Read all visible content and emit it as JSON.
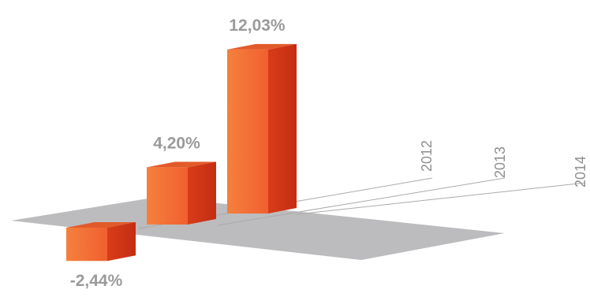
{
  "chart_data": {
    "type": "bar",
    "categories": [
      "2012",
      "2013",
      "2014"
    ],
    "values": [
      -2.44,
      4.2,
      12.03
    ],
    "value_labels": [
      "-2,44%",
      "4,20%",
      "12,03%"
    ],
    "unit": "%",
    "title": "",
    "xlabel": "",
    "ylabel": "",
    "ylim": [
      -3,
      13
    ],
    "grid": false,
    "legend": "none",
    "colors": {
      "bar_front_left": "#f5803d",
      "bar_front_right": "#f06030",
      "bar_side_light": "#d83d18",
      "bar_side_dark": "#c42d14",
      "bar_top": "#e25a2a",
      "floor": "#bcbcbe",
      "label": "#9a9a9a",
      "axis_line": "#aaaaaa"
    }
  }
}
